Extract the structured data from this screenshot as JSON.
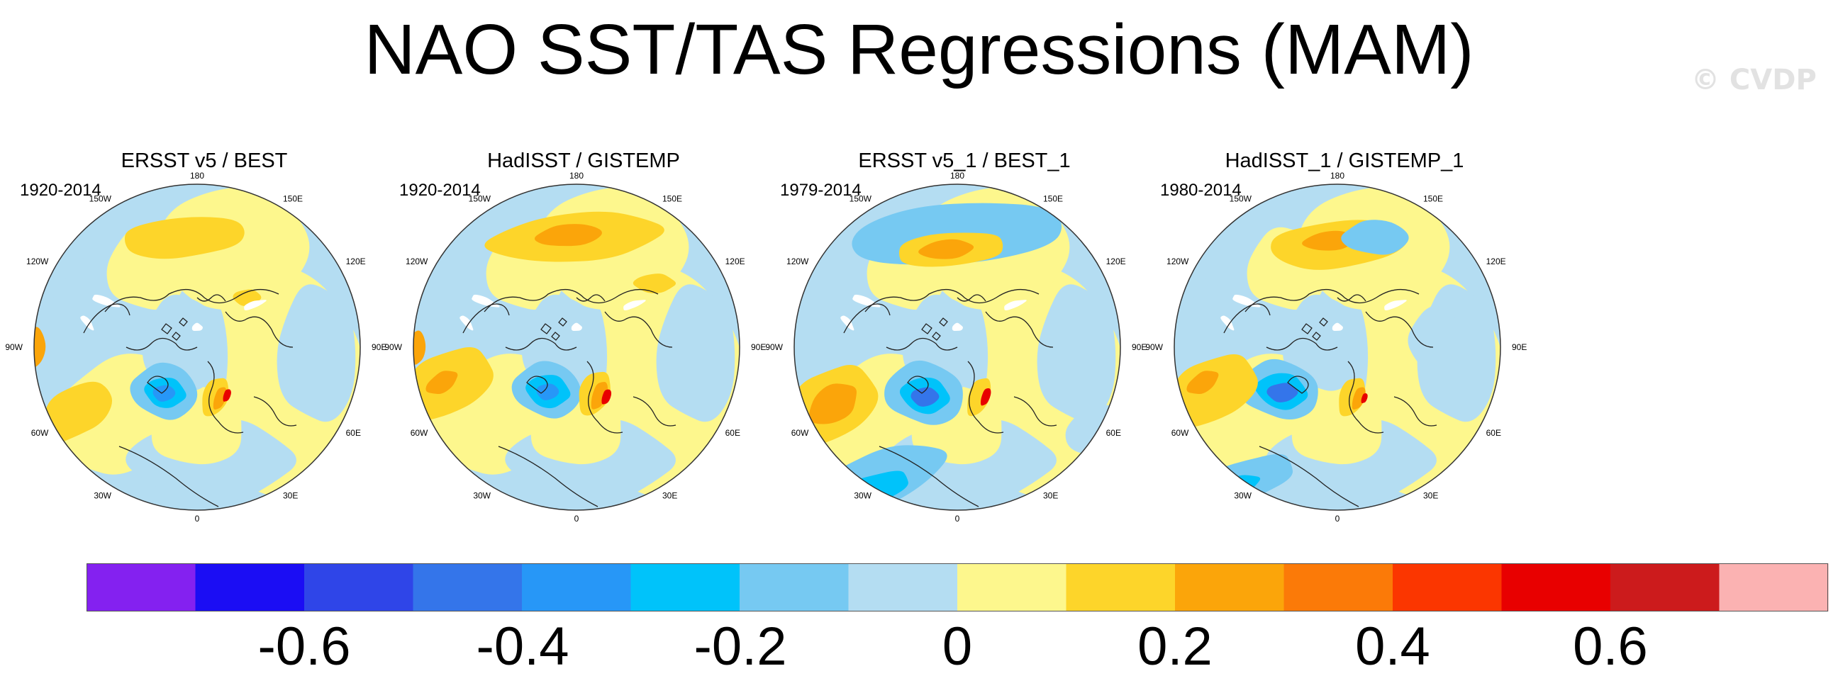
{
  "title": "NAO SST/TAS Regressions (MAM)",
  "watermark": "© CVDP",
  "panels": [
    {
      "title": "ERSST v5 / BEST",
      "years": "1920-2014"
    },
    {
      "title": "HadISST / GISTEMP",
      "years": "1920-2014"
    },
    {
      "title": "ERSST v5_1 / BEST_1",
      "years": "1979-2014"
    },
    {
      "title": "HadISST_1 / GISTEMP_1",
      "years": "1980-2014"
    }
  ],
  "longitude_labels": [
    "180",
    "150E",
    "120E",
    "90E",
    "60E",
    "30E",
    "0",
    "30W",
    "60W",
    "90W",
    "120W",
    "150W"
  ],
  "colorbar": {
    "colors": [
      "#8421f0",
      "#1b0df4",
      "#2f45e8",
      "#3475ea",
      "#2797f7",
      "#00c3fa",
      "#76c9f2",
      "#b4ddf2",
      "#fdf78d",
      "#fdd52a",
      "#fba50a",
      "#fb7a08",
      "#fb3600",
      "#e80000",
      "#cc1b1c",
      "#fbb2b2"
    ],
    "labels": [
      "-0.6",
      "-0.4",
      "-0.2",
      "0",
      "0.2",
      "0.4",
      "0.6"
    ]
  }
}
